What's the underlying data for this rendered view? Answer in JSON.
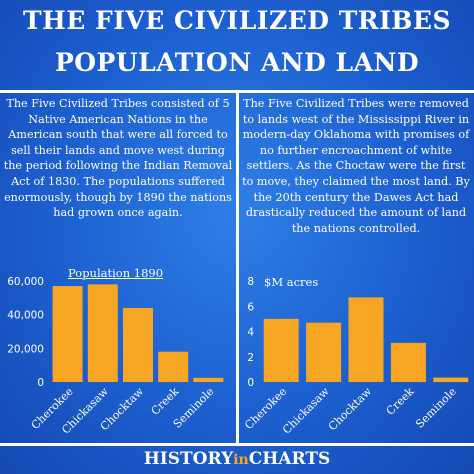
{
  "title_line1": "THE FIVE CIVILIZED TRIBES",
  "title_line2": "POPULATION AND LAND",
  "left_text": "The Five Civilized Tribes consisted of 5 Native American Nations in the American south that were all forced to sell their lands and move west during the period following the Indian Removal Act of 1830. The populations suffered enormously, though by 1890 the nations had grown once again.",
  "right_text": "The Five Civilized Tribes were removed to lands west of the Mississippi River in modern-day Oklahoma with promises of no further encroachment of white settlers. As the Choctaw were the first to move, they claimed the most land. By the 20th century the Dawes Act had drastically reduced the amount of land the nations controlled.",
  "footer": {
    "part1": "HISTORY",
    "part2": "in",
    "part3": "CHARTS"
  },
  "colors": {
    "bar": "#f6a623",
    "background": "#1c5fcf",
    "text": "#ffffff"
  },
  "chart_data": [
    {
      "type": "bar",
      "title": "Population 1890",
      "categories": [
        "Cherokee",
        "Chickasaw",
        "Chocktaw",
        "Creek",
        "Seminole"
      ],
      "values": [
        57000,
        58000,
        44000,
        18000,
        2500
      ],
      "ylim": [
        0,
        60000
      ],
      "yticks": [
        0,
        20000,
        40000,
        60000
      ],
      "ytick_labels": [
        "0",
        "20,000",
        "40,000",
        "60,000"
      ],
      "grid": false
    },
    {
      "type": "bar",
      "title": "$M acres",
      "categories": [
        "Cherokee",
        "Chickasaw",
        "Chocktaw",
        "Creek",
        "Seminole"
      ],
      "values": [
        5.0,
        4.7,
        6.7,
        3.1,
        0.35
      ],
      "ylim": [
        0,
        8
      ],
      "yticks": [
        0,
        2,
        4,
        6,
        8
      ],
      "ytick_labels": [
        "0",
        "2",
        "4",
        "6",
        "8"
      ],
      "grid": false
    }
  ]
}
